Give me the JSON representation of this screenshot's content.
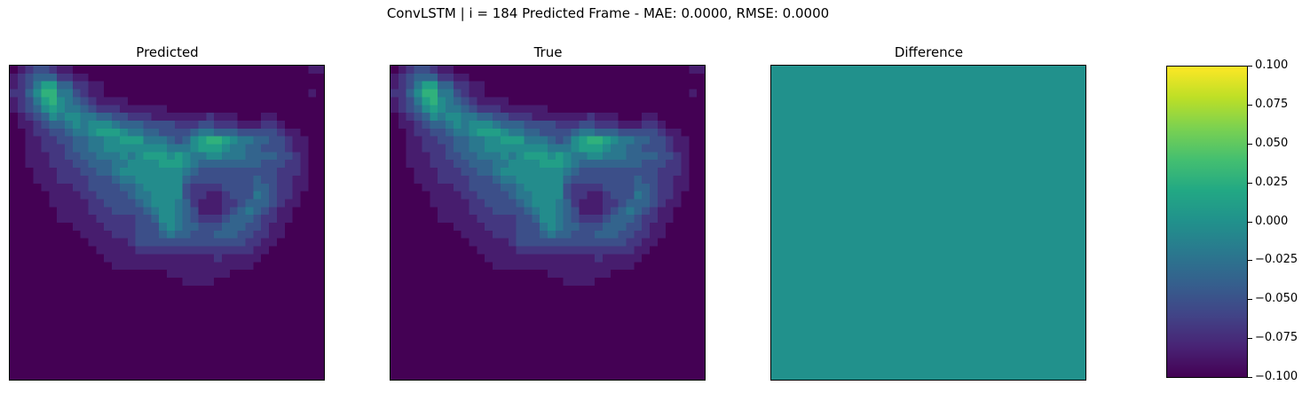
{
  "figure": {
    "suptitle": "ConvLSTM | i = 184 Predicted Frame - MAE: 0.0000, RMSE: 0.0000"
  },
  "chart_data": {
    "type": "heatmap",
    "colormap": "viridis",
    "panels": [
      {
        "title": "Predicted",
        "source": "field"
      },
      {
        "title": "True",
        "source": "field"
      },
      {
        "title": "Difference",
        "fill_value": 0.0
      }
    ],
    "colorbar": {
      "vmin": -0.1,
      "vmax": 0.1,
      "ticks": [
        "0.100",
        "0.075",
        "0.050",
        "0.025",
        "0.000",
        "−0.025",
        "−0.050",
        "−0.075",
        "−0.100"
      ]
    },
    "grid_size": 40,
    "field": [
      "0123321100000000000000000000000000000011",
      "1234442211000000000000000000000000000000",
      "1235774422110000000000000000000000000000",
      "2246885532110000000000000000000000000010",
      "1235786543211110000000000000000000000000",
      "1234676554322211111100000000000000000000",
      "0123465665544332221111111211100011000000",
      "0112344565666544433332223322211122100000",
      "0012233455677765544333345544433333211000",
      "0011223344556677755543467887655443321100",
      "0011222344556666666655567776554433321100",
      "0011122334455565677767655665554444332100",
      "0011122233444556666777654444444433322100",
      "0001112223344566666666543333333333222100",
      "0001112222333455666666433333333433221100",
      "0000111122333344566666322223333443221100",
      "0000011112233334556666322112333543221000",
      "0000011111223333456665421112234443211000",
      "0000001111222333345665431112345432110000",
      "0000001111122222334665432223444322110000",
      "0000000011112222333565443334443321100000",
      "0000000001111222333454433344433221100000",
      "0000000000111112333333333333332211000000",
      "0000000000011111222222222222222110000000",
      "0000000000001111111111111121111100000000",
      "0000000000000111111111111111111000000000",
      "0000000000000000000011111111000000000000",
      "0000000000000000000000111100000000000000",
      "0000000000000000000000000000000000000000",
      "0000000000000000000000000000000000000000",
      "0000000000000000000000000000000000000000",
      "0000000000000000000000000000000000000000",
      "0000000000000000000000000000000000000000",
      "0000000000000000000000000000000000000000",
      "0000000000000000000000000000000000000000",
      "0000000000000000000000000000000000000000",
      "0000000000000000000000000000000000000000",
      "0000000000000000000000000000000000000000",
      "0000000000000000000000000000000000000000",
      "0000000000000000000000000000000000000000"
    ],
    "field_scale_max": 9
  }
}
